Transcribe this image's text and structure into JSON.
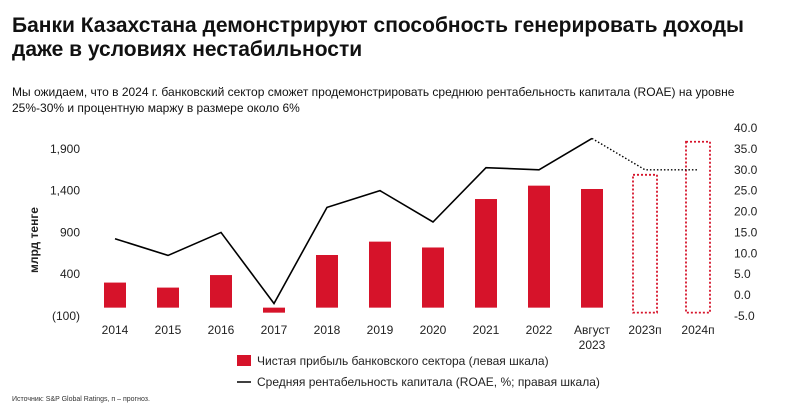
{
  "header": {
    "title": "Банки Казахстана демонстрируют способность генерировать доходы даже в условиях нестабильности",
    "subtitle": "Мы ожидаем, что в 2024 г. банковский сектор сможет продемонстрировать среднюю рентабельность капитала (ROAE) на уровне 25%-30% и процентную маржу в размере около 6%"
  },
  "source": "Источник: S&P Global Ratings, п – прогноз.",
  "colors": {
    "bar": "#d6132a",
    "line": "#000000"
  },
  "chart_data": {
    "type": "bar",
    "categories": [
      "2014",
      "2015",
      "2016",
      "2017",
      "2018",
      "2019",
      "2020",
      "2021",
      "2022",
      "Август 2023",
      "2023п",
      "2024п"
    ],
    "category_labels": [
      [
        "2014"
      ],
      [
        "2015"
      ],
      [
        "2016"
      ],
      [
        "2017"
      ],
      [
        "2018"
      ],
      [
        "2019"
      ],
      [
        "2020"
      ],
      [
        "2021"
      ],
      [
        "2022"
      ],
      [
        "Август",
        "2023"
      ],
      [
        "2023п"
      ],
      [
        "2024п"
      ]
    ],
    "ylabel": "млрд тенге",
    "ylim": [
      -100,
      2150
    ],
    "yticks": [
      -100,
      400,
      900,
      1400,
      1900
    ],
    "ytick_labels": [
      "(100)",
      "400",
      "900",
      "1,400",
      "1,900"
    ],
    "y2lim": [
      -5,
      40
    ],
    "y2ticks": [
      -5,
      0,
      5,
      10,
      15,
      20,
      25,
      30,
      35,
      40
    ],
    "y2tick_labels": [
      "-5.0",
      "0.0",
      "5.0",
      "10.0",
      "15.0",
      "20.0",
      "25.0",
      "30.0",
      "35.0",
      "40.0"
    ],
    "series": [
      {
        "name": "Чистая прибыль банковского сектора (левая шкала)",
        "type": "bar",
        "axis": "left",
        "values": [
          300,
          240,
          390,
          -60,
          630,
          790,
          720,
          1300,
          1460,
          1420,
          null,
          null
        ]
      },
      {
        "name": "Средняя рентабельность капитала (ROAE, %; правая шкала)",
        "type": "line",
        "axis": "right",
        "values": [
          13.5,
          9.5,
          15,
          -2,
          21,
          25,
          17.5,
          30.5,
          30,
          37.5,
          30,
          30
        ]
      }
    ],
    "forecast_ranges": [
      {
        "category": "2023п",
        "left_axis_range": [
          -60,
          1590
        ]
      },
      {
        "category": "2024п",
        "left_axis_range": [
          -60,
          1985
        ]
      }
    ],
    "legend": [
      "Чистая прибыль банковского сектора (левая шкала)",
      "Средняя рентабельность капитала (ROAE, %; правая шкала)"
    ]
  }
}
